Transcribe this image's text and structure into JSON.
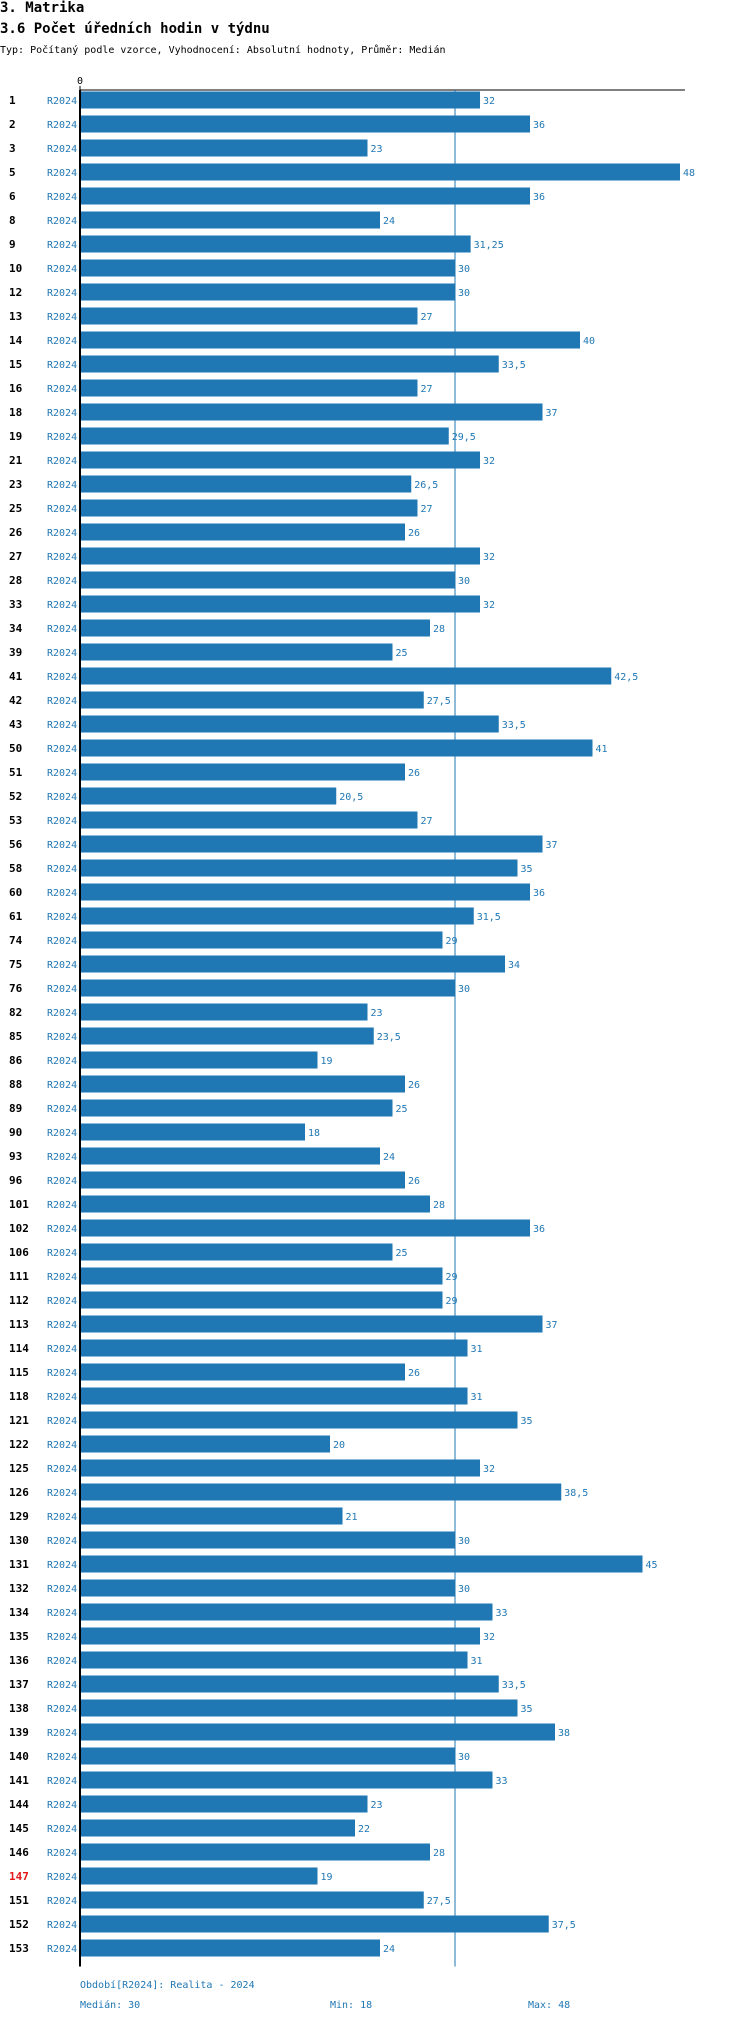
{
  "section_title": "3. Matrika",
  "subsection_title": "3.6 Počet úředních hodin v týdnu",
  "subtitle": "Typ: Počítaný podle vzorce, Vyhodnocení: Absolutní hodnoty, Průměr: Medián",
  "colors": {
    "bar": "#1f77b4",
    "label": "#1f77b4",
    "highlight": "#e31a1c",
    "axis": "#000000"
  },
  "chart_data": {
    "type": "bar",
    "orientation": "horizontal",
    "series_label": "R2024",
    "x_min": 0,
    "x_max": 48,
    "zero_label": "0",
    "median": 30,
    "highlight_category": "147",
    "categories": [
      "1",
      "2",
      "3",
      "5",
      "6",
      "8",
      "9",
      "10",
      "12",
      "13",
      "14",
      "15",
      "16",
      "18",
      "19",
      "21",
      "23",
      "25",
      "26",
      "27",
      "28",
      "33",
      "34",
      "39",
      "41",
      "42",
      "43",
      "50",
      "51",
      "52",
      "53",
      "56",
      "58",
      "60",
      "61",
      "74",
      "75",
      "76",
      "82",
      "85",
      "86",
      "88",
      "89",
      "90",
      "93",
      "96",
      "101",
      "102",
      "106",
      "111",
      "112",
      "113",
      "114",
      "115",
      "118",
      "121",
      "122",
      "125",
      "126",
      "129",
      "130",
      "131",
      "132",
      "134",
      "135",
      "136",
      "137",
      "138",
      "139",
      "140",
      "141",
      "144",
      "145",
      "146",
      "147",
      "151",
      "152",
      "153"
    ],
    "values": [
      32,
      36,
      23,
      48,
      36,
      24,
      31.25,
      30,
      30,
      27,
      40,
      33.5,
      27,
      37,
      29.5,
      32,
      26.5,
      27,
      26,
      32,
      30,
      32,
      28,
      25,
      42.5,
      27.5,
      33.5,
      41,
      26,
      20.5,
      27,
      37,
      35,
      36,
      31.5,
      29,
      34,
      30,
      23,
      23.5,
      19,
      26,
      25,
      18,
      24,
      26,
      28,
      36,
      25,
      29,
      29,
      37,
      31,
      26,
      31,
      35,
      20,
      32,
      38.5,
      21,
      30,
      45,
      30,
      33,
      32,
      31,
      33.5,
      35,
      38,
      30,
      33,
      23,
      22,
      28,
      19,
      27.5,
      37.5,
      24
    ],
    "value_labels": [
      "32",
      "36",
      "23",
      "48",
      "36",
      "24",
      "31,25",
      "30",
      "30",
      "27",
      "40",
      "33,5",
      "27",
      "37",
      "29,5",
      "32",
      "26,5",
      "27",
      "26",
      "32",
      "30",
      "32",
      "28",
      "25",
      "42,5",
      "27,5",
      "33,5",
      "41",
      "26",
      "20,5",
      "27",
      "37",
      "35",
      "36",
      "31,5",
      "29",
      "34",
      "30",
      "23",
      "23,5",
      "19",
      "26",
      "25",
      "18",
      "24",
      "26",
      "28",
      "36",
      "25",
      "29",
      "29",
      "37",
      "31",
      "26",
      "31",
      "35",
      "20",
      "32",
      "38,5",
      "21",
      "30",
      "45",
      "30",
      "33",
      "32",
      "31",
      "33,5",
      "35",
      "38",
      "30",
      "33",
      "23",
      "22",
      "28",
      "19",
      "27,5",
      "37,5",
      "24"
    ]
  },
  "footer": {
    "period": "Období[R2024]: Realita - 2024",
    "median": "Medián: 30",
    "min": "Min: 18",
    "max": "Max: 48"
  }
}
